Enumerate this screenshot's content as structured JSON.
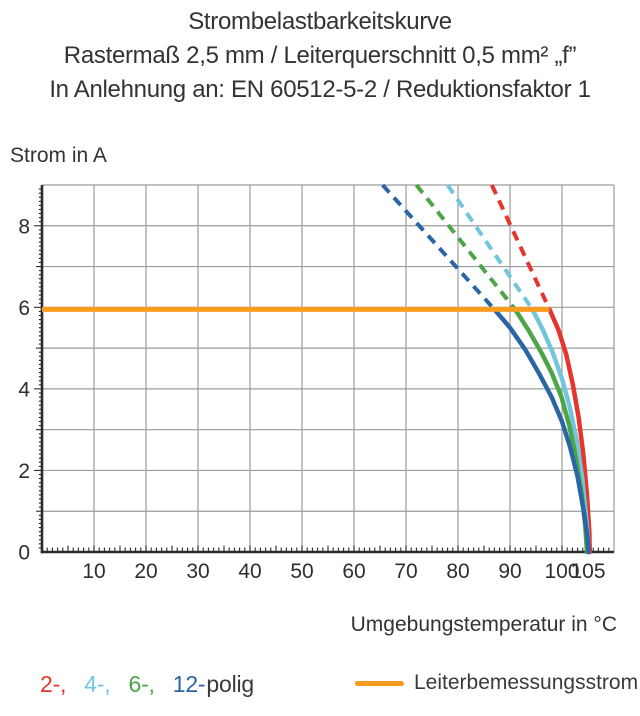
{
  "header": {
    "line1": "Strombelastbarkeitskurve",
    "line2": "Rastermaß 2,5 mm / Leiterquerschnitt 0,5 mm² „f”",
    "line3": "In Anlehnung an: EN 60512-5-2 / Reduktionsfaktor 1"
  },
  "legend": {
    "poles_suffix": "polig",
    "reference_label": "Leiterbemessungsstrom"
  },
  "chart_data": {
    "type": "line",
    "title": "Strombelastbarkeitskurve",
    "x_axis": {
      "label": "Umgebungstemperatur in °C",
      "min": 0,
      "max": 110,
      "grid_step": 10,
      "minor_tick_step": 1,
      "tick_labels": [
        10,
        20,
        30,
        40,
        50,
        60,
        70,
        80,
        90,
        100,
        105
      ]
    },
    "y_axis": {
      "label": "Strom in A",
      "min": 0,
      "max": 9,
      "grid_step": 1,
      "minor_tick_step": 0.1,
      "tick_labels": [
        0,
        2,
        4,
        6,
        8
      ]
    },
    "colors": {
      "grid": "#9c9c9c",
      "axis": "#2b2b2b",
      "text": "#2e2e2e"
    },
    "series": [
      {
        "name": "2-polig",
        "legend_label": "2-,",
        "color": "#e5352c",
        "dashed_points": [
          [
            86.5,
            9
          ],
          [
            97.6,
            5.95
          ]
        ],
        "solid_points": [
          [
            97.6,
            5.95
          ],
          [
            99.3,
            5.45
          ],
          [
            100.8,
            4.85
          ],
          [
            102.1,
            4.1
          ],
          [
            103.2,
            3.3
          ],
          [
            104.1,
            2.4
          ],
          [
            104.8,
            1.4
          ],
          [
            105.25,
            0.5
          ],
          [
            105.35,
            0
          ]
        ]
      },
      {
        "name": "4-polig",
        "legend_label": "4-,",
        "color": "#72c5dd",
        "dashed_points": [
          [
            78,
            9
          ],
          [
            94.3,
            5.95
          ]
        ],
        "solid_points": [
          [
            94.3,
            5.95
          ],
          [
            96.3,
            5.45
          ],
          [
            98.2,
            4.9
          ],
          [
            100,
            4.25
          ],
          [
            101.5,
            3.55
          ],
          [
            102.8,
            2.75
          ],
          [
            103.9,
            1.8
          ],
          [
            104.6,
            0.9
          ],
          [
            105,
            0.3
          ],
          [
            105.05,
            0
          ]
        ]
      },
      {
        "name": "6-polig",
        "legend_label": "6-,",
        "color": "#4ca547",
        "dashed_points": [
          [
            72,
            9
          ],
          [
            91,
            5.95
          ]
        ],
        "solid_points": [
          [
            91,
            5.95
          ],
          [
            93.5,
            5.45
          ],
          [
            96,
            4.9
          ],
          [
            98,
            4.4
          ],
          [
            99.9,
            3.8
          ],
          [
            101.4,
            3.1
          ],
          [
            102.7,
            2.3
          ],
          [
            103.8,
            1.4
          ],
          [
            104.5,
            0.6
          ],
          [
            104.8,
            0
          ]
        ]
      },
      {
        "name": "12-polig",
        "legend_label": "12-",
        "color": "#2a65a5",
        "dashed_points": [
          [
            65.5,
            9
          ],
          [
            87,
            5.95
          ]
        ],
        "solid_points": [
          [
            87,
            5.95
          ],
          [
            90,
            5.5
          ],
          [
            93,
            4.95
          ],
          [
            95.5,
            4.4
          ],
          [
            98,
            3.8
          ],
          [
            100,
            3.2
          ],
          [
            101.5,
            2.6
          ],
          [
            103,
            1.85
          ],
          [
            104.2,
            1.0
          ],
          [
            104.9,
            0.35
          ],
          [
            105.1,
            0
          ]
        ]
      }
    ],
    "reference_line": {
      "name": "Leiterbemessungsstrom",
      "color": "#f79c1e",
      "y": 5.95,
      "x_start": 0,
      "x_end": 97.6
    }
  }
}
